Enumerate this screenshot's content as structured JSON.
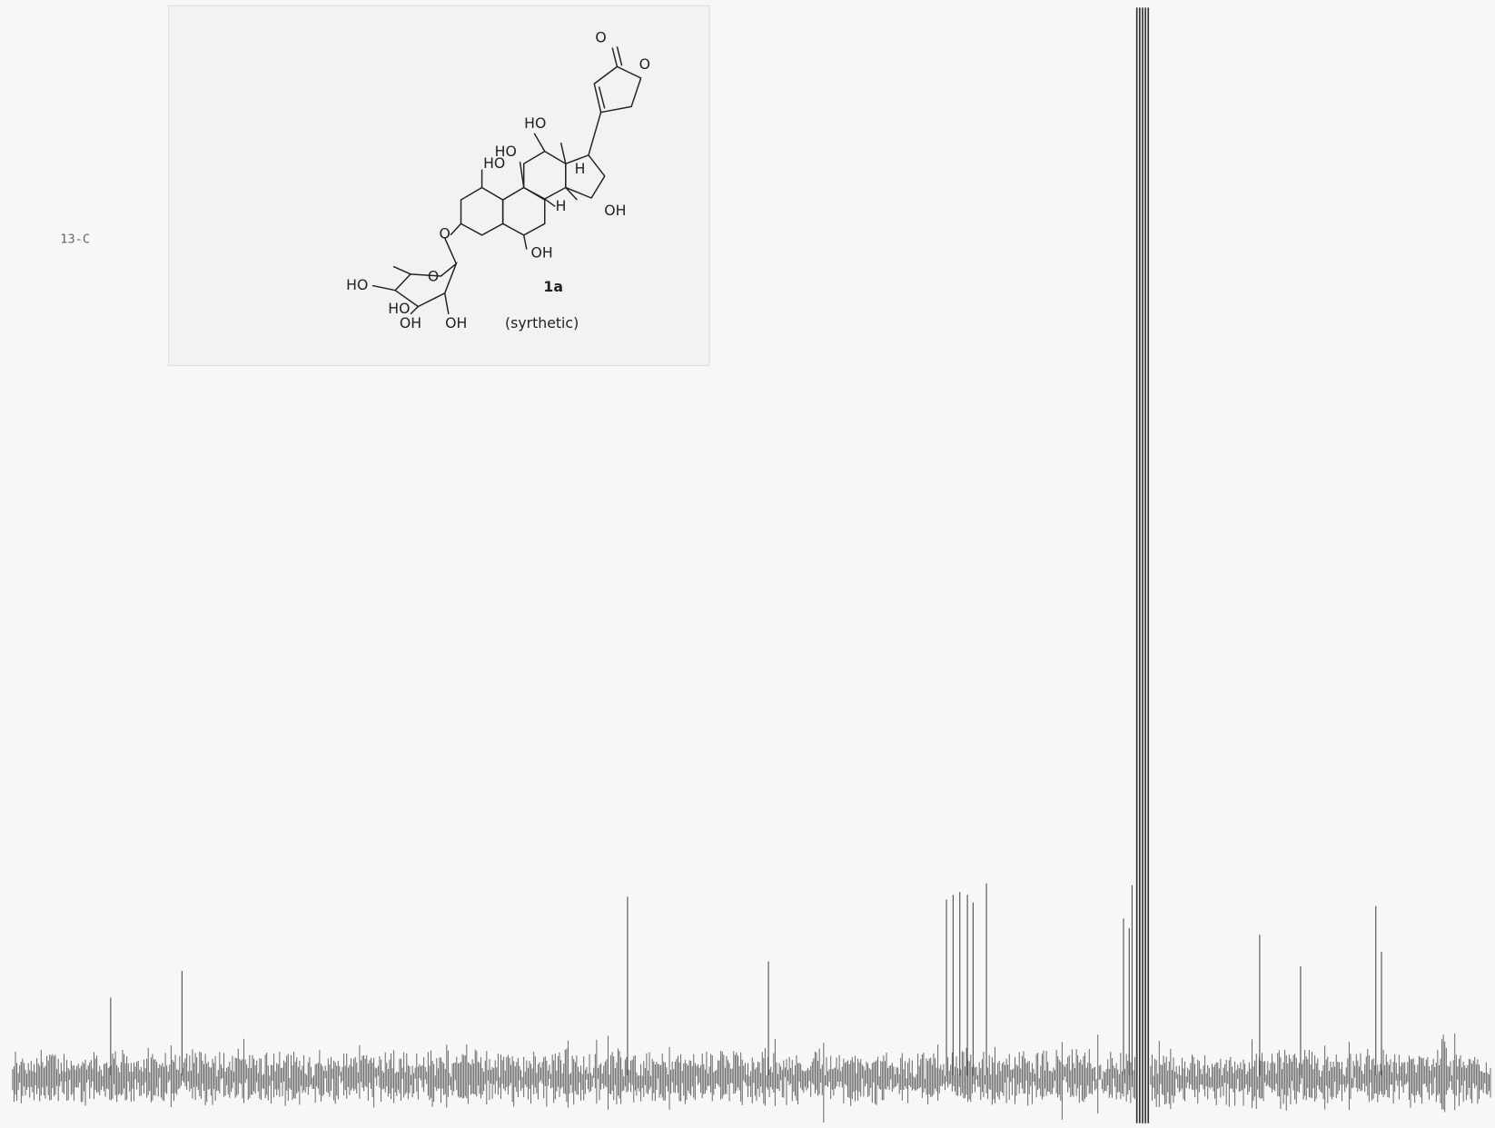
{
  "label": "13-C",
  "compound": {
    "id": "1a",
    "note": "(syrthetic)",
    "groups": [
      "O",
      "O",
      "HO",
      "HO",
      "HO",
      "H",
      "H",
      "OH",
      "O",
      "OH",
      "HO",
      "O",
      "HO",
      "OH",
      "OH"
    ]
  }
}
